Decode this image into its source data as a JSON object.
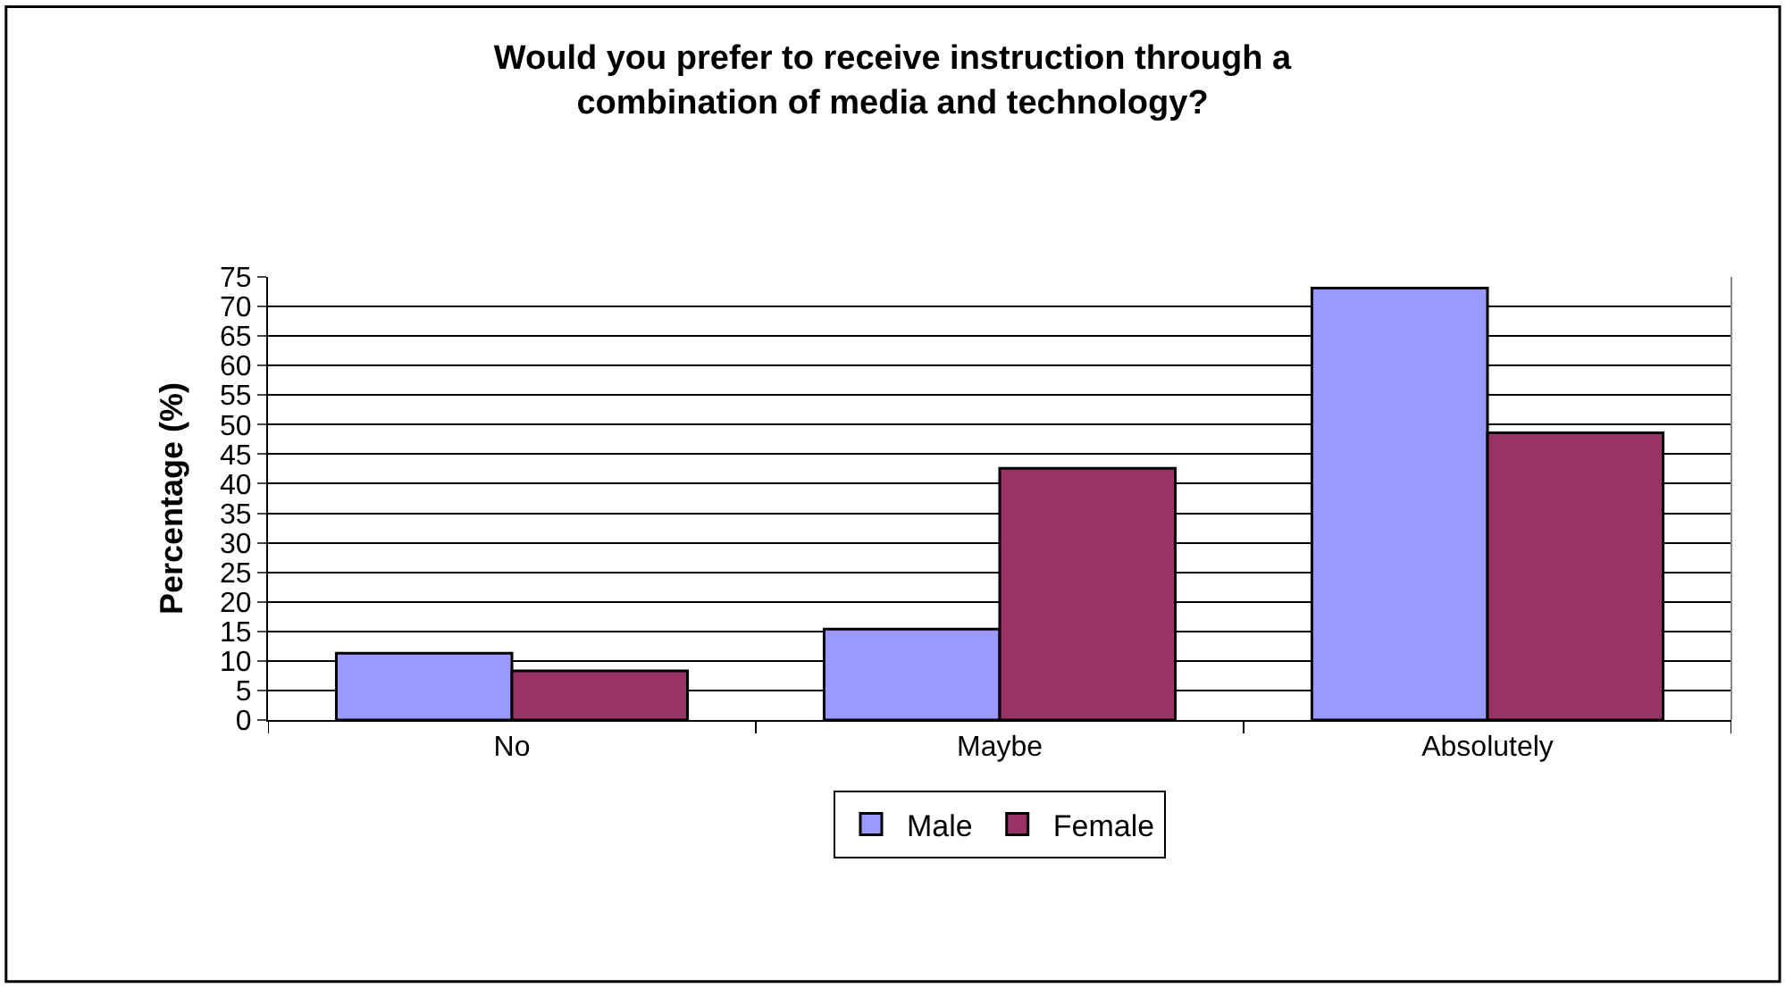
{
  "chart_data": {
    "type": "bar",
    "title": "Would you prefer to receive instruction through a combination of media and technology?",
    "ylabel": "Percentage (%)",
    "categories": [
      "No",
      "Maybe",
      "Absolutely"
    ],
    "series": [
      {
        "name": "Male",
        "color": "#9999ff",
        "values": [
          11.3,
          15.4,
          73.1
        ]
      },
      {
        "name": "Female",
        "color": "#993366",
        "values": [
          8.3,
          42.6,
          48.6
        ]
      }
    ],
    "ylim": [
      0,
      75
    ],
    "yticks": [
      0,
      5,
      10,
      15,
      20,
      25,
      30,
      35,
      40,
      45,
      50,
      55,
      60,
      65,
      70,
      75
    ],
    "grid": "y",
    "legend": "bottom"
  }
}
